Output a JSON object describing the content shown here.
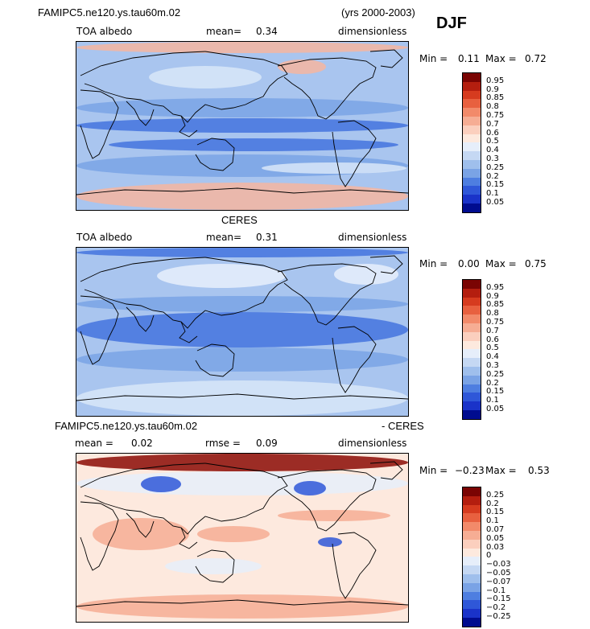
{
  "header": {
    "model_name": "FAMIPC5.ne120.ys.tau60m.02",
    "years": "(yrs 2000-2003)",
    "season": "DJF"
  },
  "panels": [
    {
      "title": "",
      "variable": "TOA albedo",
      "stat_label": "mean=",
      "stat_value": "0.34",
      "units": "dimensionless",
      "min_label": "Min =",
      "min_value": "0.11",
      "max_label": "Max =",
      "max_value": "0.72",
      "colorbar": {
        "ticks": [
          "0.95",
          "0.9",
          "0.85",
          "0.8",
          "0.75",
          "0.7",
          "0.6",
          "0.5",
          "0.4",
          "0.3",
          "0.25",
          "0.2",
          "0.15",
          "0.1",
          "0.05"
        ],
        "colors": [
          "#7a0403",
          "#b41e0f",
          "#d63b1f",
          "#e8603f",
          "#f28a6a",
          "#f6ad94",
          "#fbcfbe",
          "#fde9de",
          "#e6eefa",
          "#c5d8f3",
          "#9fbfec",
          "#7aa3e5",
          "#4e7ee0",
          "#2f57d8",
          "#1a33c9",
          "#000c8f"
        ]
      },
      "map_colors": {
        "base": "#a9c5ef",
        "cold_high": "#f6b5a0",
        "deep": "#4473de",
        "mid": "#7aa3e5",
        "pale": "#d8e6f8"
      }
    },
    {
      "title": "CERES",
      "variable": "TOA albedo",
      "stat_label": "mean=",
      "stat_value": "0.31",
      "units": "dimensionless",
      "min_label": "Min =",
      "min_value": "0.00",
      "max_label": "Max =",
      "max_value": "0.75",
      "colorbar": {
        "ticks": [
          "0.95",
          "0.9",
          "0.85",
          "0.8",
          "0.75",
          "0.7",
          "0.6",
          "0.5",
          "0.4",
          "0.3",
          "0.25",
          "0.2",
          "0.15",
          "0.1",
          "0.05"
        ],
        "colors": [
          "#7a0403",
          "#b41e0f",
          "#d63b1f",
          "#e8603f",
          "#f28a6a",
          "#f6ad94",
          "#fbcfbe",
          "#fde9de",
          "#e6eefa",
          "#c5d8f3",
          "#9fbfec",
          "#7aa3e5",
          "#4e7ee0",
          "#2f57d8",
          "#1a33c9",
          "#000c8f"
        ]
      },
      "map_colors": {
        "base": "#a9c5ef",
        "cold_high": "#d8e6f8",
        "deep": "#4473de",
        "mid": "#7aa3e5",
        "pale": "#e8eefb"
      }
    },
    {
      "title_left": "FAMIPC5.ne120.ys.tau60m.02",
      "title_right": "- CERES",
      "variable": "mean =",
      "stat_value_a": "0.02",
      "stat_label": "rmse =",
      "stat_value": "0.09",
      "units": "dimensionless",
      "min_label": "Min =",
      "min_value": "−0.23",
      "max_label": "Max =",
      "max_value": "0.53",
      "colorbar": {
        "ticks": [
          "0.25",
          "0.2",
          "0.15",
          "0.1",
          "0.07",
          "0.05",
          "0.03",
          "0",
          "−0.03",
          "−0.05",
          "−0.07",
          "−0.1",
          "−0.15",
          "−0.2",
          "−0.25"
        ],
        "colors": [
          "#7a0403",
          "#b41e0f",
          "#d63b1f",
          "#e8603f",
          "#f28a6a",
          "#f6ad94",
          "#fbcfbe",
          "#fde9de",
          "#e6eefa",
          "#c5d8f3",
          "#9fbfec",
          "#7aa3e5",
          "#4e7ee0",
          "#2f57d8",
          "#1a33c9",
          "#000c8f"
        ]
      },
      "map_colors": {
        "base": "#fde9de",
        "cold_high": "#8b0a05",
        "deep": "#2f57d8",
        "mid": "#f6ad94",
        "pale": "#e6eefa"
      }
    }
  ]
}
